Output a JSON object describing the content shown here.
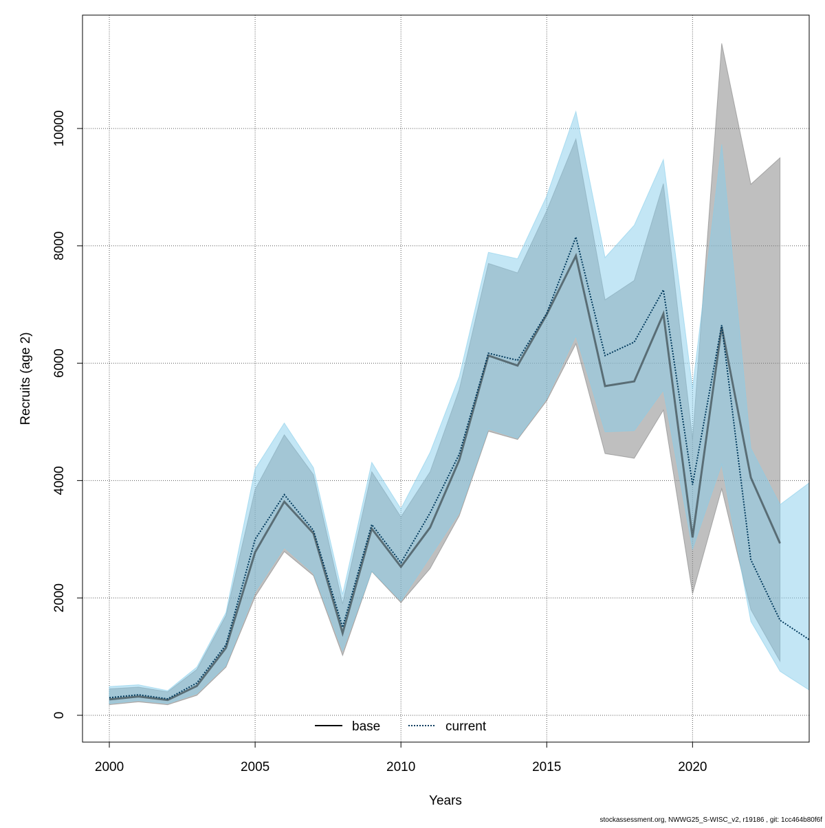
{
  "chart_data": {
    "type": "line",
    "title": "",
    "xlabel": "Years",
    "ylabel": "Recruits (age 2)",
    "xlim": [
      1999.08,
      2024.0
    ],
    "ylim": [
      -457,
      11932
    ],
    "xticks": [
      2000,
      2005,
      2010,
      2015,
      2020
    ],
    "yticks": [
      0,
      2000,
      4000,
      6000,
      8000,
      10000
    ],
    "grid": true,
    "legend": {
      "placement": "bottom-center",
      "entries": [
        "base",
        "current"
      ]
    },
    "series": [
      {
        "name": "base",
        "style": "solid",
        "line_color": "#4a4a4a",
        "band_color": "#808080",
        "x": [
          2000,
          2001,
          2002,
          2003,
          2004,
          2005,
          2006,
          2007,
          2008,
          2009,
          2010,
          2011,
          2012,
          2013,
          2014,
          2015,
          2016,
          2017,
          2018,
          2019,
          2020,
          2021,
          2022,
          2023
        ],
        "values": [
          270,
          320,
          260,
          500,
          1150,
          2780,
          3640,
          3100,
          1400,
          3180,
          2530,
          3200,
          4350,
          6130,
          5960,
          6830,
          7830,
          5610,
          5690,
          6840,
          3030,
          6620,
          4050,
          2930
        ],
        "lower": [
          180,
          230,
          180,
          340,
          820,
          2020,
          2790,
          2380,
          1020,
          2450,
          1920,
          2500,
          3400,
          4840,
          4700,
          5360,
          6330,
          4460,
          4380,
          5200,
          2070,
          3860,
          1800,
          920
        ],
        "upper": [
          450,
          480,
          400,
          780,
          1700,
          3850,
          4780,
          4100,
          1900,
          4150,
          3380,
          4150,
          5550,
          7700,
          7540,
          8600,
          9820,
          7080,
          7410,
          9060,
          4700,
          11450,
          9050,
          9500
        ]
      },
      {
        "name": "current",
        "style": "dotted",
        "line_color": "#00395c",
        "band_color": "#87ceeb",
        "x": [
          2000,
          2001,
          2002,
          2003,
          2004,
          2005,
          2006,
          2007,
          2008,
          2009,
          2010,
          2011,
          2012,
          2013,
          2014,
          2015,
          2016,
          2017,
          2018,
          2019,
          2020,
          2021,
          2022,
          2023,
          2024
        ],
        "values": [
          300,
          350,
          280,
          550,
          1200,
          3000,
          3760,
          3150,
          1500,
          3250,
          2600,
          3450,
          4450,
          6170,
          6050,
          6850,
          8150,
          6130,
          6360,
          7250,
          3930,
          6650,
          2650,
          1620,
          1290
        ],
        "lower": [
          200,
          250,
          200,
          370,
          850,
          2100,
          2860,
          2420,
          1100,
          2460,
          1950,
          2700,
          3450,
          4880,
          4720,
          5400,
          6470,
          4830,
          4850,
          5540,
          2830,
          4280,
          1600,
          750,
          430
        ],
        "upper": [
          490,
          520,
          420,
          820,
          1750,
          4200,
          4980,
          4220,
          2060,
          4310,
          3520,
          4480,
          5770,
          7890,
          7780,
          8850,
          10290,
          7800,
          8350,
          9470,
          5570,
          9730,
          4550,
          3590,
          3960
        ]
      }
    ],
    "footer": "stockassessment.org, NWWG25_S-WISC_v2, r19186 , git: 1cc464b80f6f"
  }
}
